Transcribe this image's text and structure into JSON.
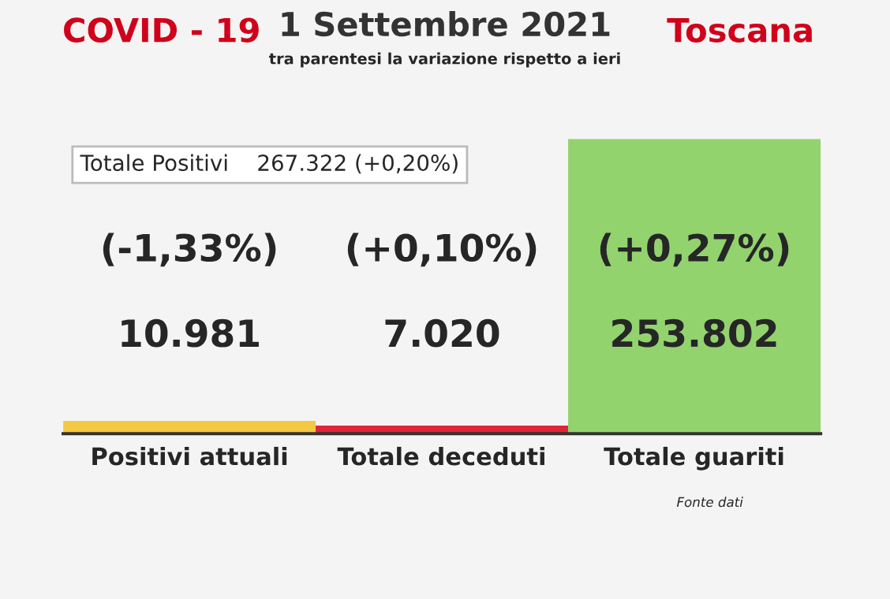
{
  "chart_data": {
    "type": "bar",
    "title": "COVID - 19",
    "subtitle": "1 Settembre 2021",
    "categories": [
      "Positivi attuali",
      "Totale deceduti",
      "Totale guariti"
    ],
    "values": [
      10981,
      7020,
      253802
    ],
    "colors": [
      "#f5c842",
      "#e0243a",
      "#92d36e"
    ],
    "value_labels": [
      "10.981",
      "7.020",
      "253.802"
    ],
    "annotations": [
      "Toscana",
      "tra parentesi la variazione rispetto a ieri",
      "Totale Positivi    267.322 (+0,20%)",
      "(-1,33%)",
      "(+0,10%)",
      "(+0,27%)",
      "Fonte dati"
    ]
  }
}
